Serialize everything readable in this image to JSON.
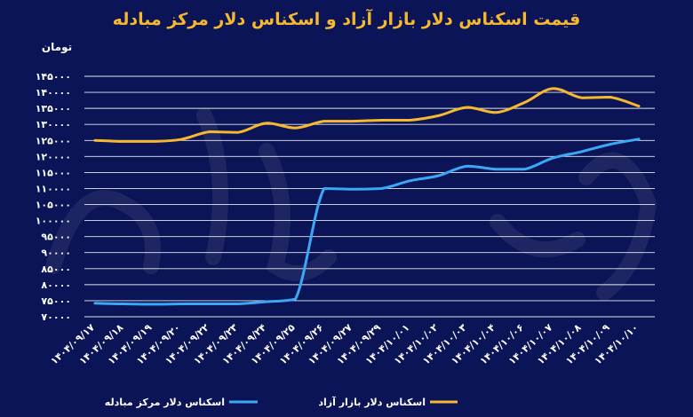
{
  "chart_data": {
    "type": "line",
    "title": "قیمت اسکناس دلار بازار آزاد و اسکناس دلار مرکز مبادله",
    "ylabel": "تومان",
    "ylim": [
      70000,
      145000
    ],
    "yticks": [
      {
        "value": 70000,
        "label": "۷۰۰۰۰"
      },
      {
        "value": 75000,
        "label": "۷۵۰۰۰"
      },
      {
        "value": 80000,
        "label": "۸۰۰۰۰"
      },
      {
        "value": 85000,
        "label": "۸۵۰۰۰"
      },
      {
        "value": 90000,
        "label": "۹۰۰۰۰"
      },
      {
        "value": 95000,
        "label": "۹۵۰۰۰"
      },
      {
        "value": 100000,
        "label": "۱۰۰۰۰۰"
      },
      {
        "value": 105000,
        "label": "۱۰۵۰۰۰"
      },
      {
        "value": 110000,
        "label": "۱۱۰۰۰۰"
      },
      {
        "value": 115000,
        "label": "۱۱۵۰۰۰"
      },
      {
        "value": 120000,
        "label": "۱۲۰۰۰۰"
      },
      {
        "value": 125000,
        "label": "۱۲۵۰۰۰"
      },
      {
        "value": 130000,
        "label": "۱۳۰۰۰۰"
      },
      {
        "value": 135000,
        "label": "۱۳۵۰۰۰"
      },
      {
        "value": 140000,
        "label": "۱۴۰۰۰۰"
      },
      {
        "value": 145000,
        "label": "۱۴۵۰۰۰"
      }
    ],
    "categories": [
      "۱۴۰۴/۰۹/۱۷",
      "۱۴۰۴/۰۹/۱۸",
      "۱۴۰۴/۰۹/۱۹",
      "۱۴۰۴/۰۹/۲۰",
      "۱۴۰۴/۰۹/۲۲",
      "۱۴۰۴/۰۹/۲۳",
      "۱۴۰۴/۰۹/۲۴",
      "۱۴۰۴/۰۹/۲۵",
      "۱۴۰۴/۰۹/۲۶",
      "۱۴۰۴/۰۹/۲۷",
      "۱۴۰۴/۰۹/۲۹",
      "۱۴۰۴/۱۰/۰۱",
      "۱۴۰۴/۱۰/۰۲",
      "۱۴۰۴/۱۰/۰۳",
      "۱۴۰۴/۱۰/۰۴",
      "۱۴۰۴/۱۰/۰۶",
      "۱۴۰۴/۱۰/۰۷",
      "۱۴۰۴/۱۰/۰۸",
      "۱۴۰۴/۱۰/۰۹",
      "۱۴۰۴/۱۰/۱۰"
    ],
    "series": [
      {
        "name": "اسکناس دلار بازار آزاد",
        "color": "#f5b82e",
        "values": [
          125000,
          124700,
          124700,
          125300,
          127700,
          127500,
          130400,
          128900,
          131000,
          131000,
          131300,
          131300,
          132700,
          135300,
          133700,
          136800,
          141200,
          138300,
          138500,
          135700
        ]
      },
      {
        "name": "اسکناس دلار مرکز مبادله",
        "color": "#3ba8f5",
        "values": [
          74200,
          74000,
          73900,
          74000,
          74000,
          74000,
          74700,
          75500,
          110000,
          109800,
          110000,
          112400,
          114000,
          117000,
          116000,
          116000,
          119500,
          121500,
          123800,
          125400
        ]
      }
    ],
    "grid": true,
    "legend_position": "bottom-center"
  }
}
